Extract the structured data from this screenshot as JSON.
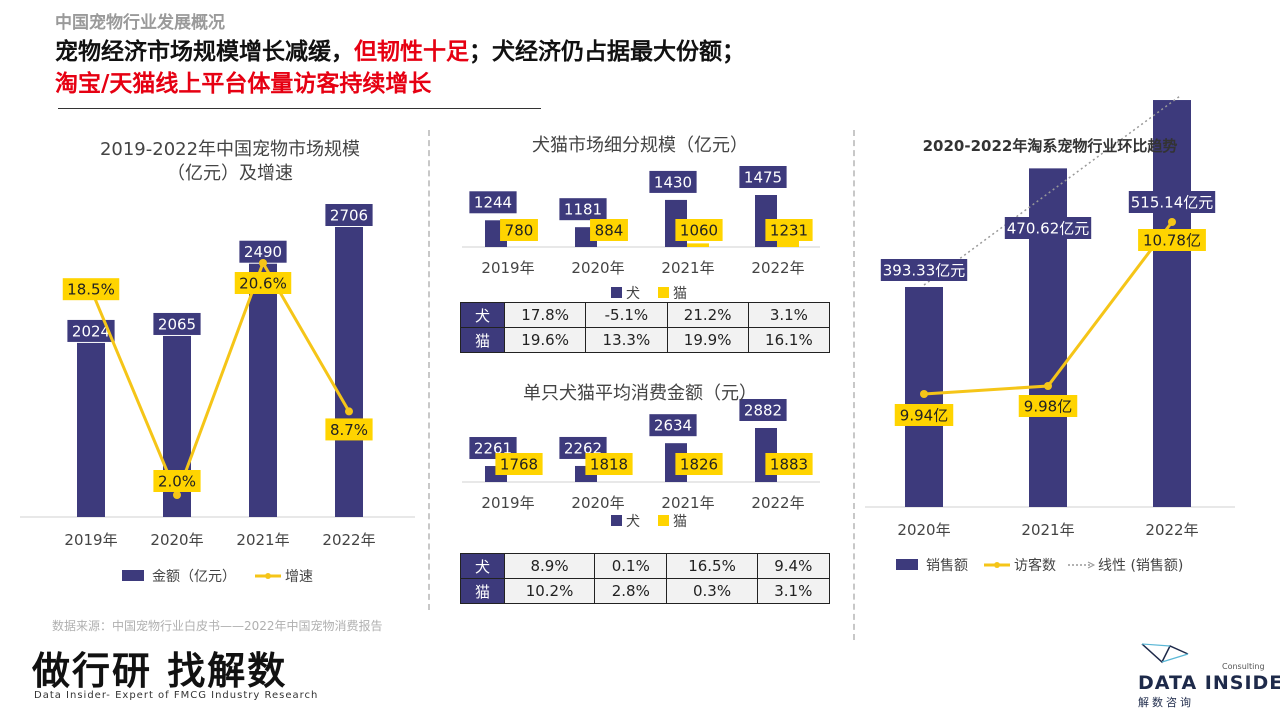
{
  "header": {
    "section_label": "中国宠物行业发展概况",
    "title_line1_a": "宠物经济市场规模增长减缓，",
    "title_line1_b": "但韧性十足",
    "title_line1_c": "；犬经济仍占据最大份额；",
    "title_line2": "淘宝/天猫线上平台体量访客持续增长"
  },
  "source": "数据来源：中国宠物行业白皮书——2022年中国宠物消费报告",
  "brand": {
    "slogan": "做行研 找解数",
    "subtitle": "Data Insider- Expert of FMCG Industry Research",
    "logo_main": "DATA INSIDER",
    "logo_consulting": "Consulting",
    "logo_cn": "解数咨询"
  },
  "colors": {
    "navy": "#3d3a7c",
    "yellow": "#ffd400",
    "yellow_line": "#f5c518",
    "red": "#e60012"
  },
  "chart_data": [
    {
      "type": "bar",
      "title": "2019-2022年中国宠物市场规模\n（亿元）及增速",
      "categories": [
        "2019年",
        "2020年",
        "2021年",
        "2022年"
      ],
      "series": [
        {
          "name": "金额（亿元）",
          "type": "bar",
          "values": [
            2024,
            2065,
            2490,
            2706
          ],
          "labels": [
            "2024",
            "2065",
            "2490",
            "2706"
          ]
        },
        {
          "name": "增速",
          "type": "line",
          "values": [
            18.5,
            2.0,
            20.6,
            8.7
          ],
          "labels": [
            "18.5%",
            "2.0%",
            "20.6%",
            "8.7%"
          ]
        }
      ],
      "legend": "bottom"
    },
    {
      "type": "bar",
      "title": "犬猫市场细分规模（亿元）",
      "categories": [
        "2019年",
        "2020年",
        "2021年",
        "2022年"
      ],
      "series": [
        {
          "name": "犬",
          "values": [
            1244,
            1181,
            1430,
            1475
          ],
          "labels": [
            "1244",
            "1181",
            "1430",
            "1475"
          ]
        },
        {
          "name": "猫",
          "values": [
            780,
            884,
            1060,
            1231
          ],
          "labels": [
            "780",
            "884",
            "1060",
            "1231"
          ]
        }
      ],
      "legend": "bottom"
    },
    {
      "type": "table",
      "rows": [
        {
          "label": "犬",
          "values": [
            "17.8%",
            "-5.1%",
            "21.2%",
            "3.1%"
          ]
        },
        {
          "label": "猫",
          "values": [
            "19.6%",
            "13.3%",
            "19.9%",
            "16.1%"
          ]
        }
      ]
    },
    {
      "type": "bar",
      "title": "单只犬猫平均消费金额（元）",
      "categories": [
        "2019年",
        "2020年",
        "2021年",
        "2022年"
      ],
      "series": [
        {
          "name": "犬",
          "values": [
            2261,
            2262,
            2634,
            2882
          ],
          "labels": [
            "2261",
            "2262",
            "2634",
            "2882"
          ]
        },
        {
          "name": "猫",
          "values": [
            1768,
            1818,
            1826,
            1883
          ],
          "labels": [
            "1768",
            "1818",
            "1826",
            "1883"
          ]
        }
      ],
      "legend": "bottom"
    },
    {
      "type": "table",
      "rows": [
        {
          "label": "犬",
          "values": [
            "8.9%",
            "0.1%",
            "16.5%",
            "9.4%"
          ]
        },
        {
          "label": "猫",
          "values": [
            "10.2%",
            "2.8%",
            "0.3%",
            "3.1%"
          ]
        }
      ]
    },
    {
      "type": "bar",
      "title": "2020-2022年淘系宠物行业环比趋势",
      "categories": [
        "2020年",
        "2021年",
        "2022年"
      ],
      "series": [
        {
          "name": "销售额",
          "type": "bar",
          "values": [
            393.33,
            470.62,
            515.14
          ],
          "labels": [
            "393.33亿元",
            "470.62亿元",
            "515.14亿元"
          ]
        },
        {
          "name": "访客数",
          "type": "line",
          "values": [
            9.94,
            9.98,
            10.78
          ],
          "labels": [
            "9.94亿",
            "9.98亿",
            "10.78亿"
          ]
        },
        {
          "name": "线性 (销售额)",
          "type": "trendline"
        }
      ],
      "legend": "bottom"
    }
  ]
}
